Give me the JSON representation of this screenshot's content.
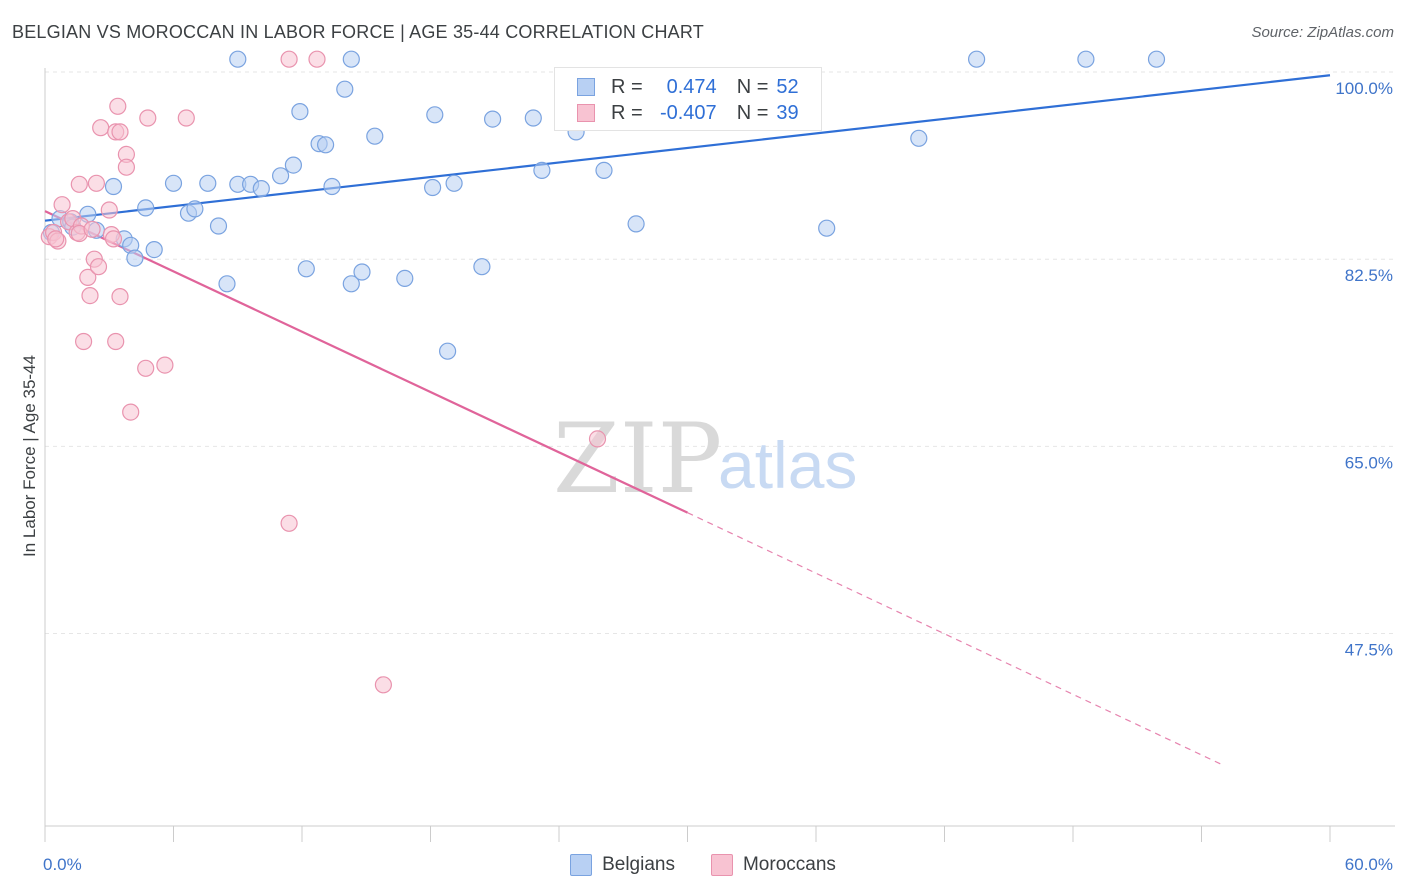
{
  "title": "BELGIAN VS MOROCCAN IN LABOR FORCE | AGE 35-44 CORRELATION CHART",
  "source": "Source: ZipAtlas.com",
  "watermark": {
    "zip": "ZIP",
    "atlas": "atlas"
  },
  "legend": {
    "r_label": "R =",
    "n_label": "N =",
    "rows": [
      {
        "series": "Belgians",
        "r": "0.474",
        "n": "52",
        "fill": "#b8d0f3",
        "stroke": "#7aa3e0"
      },
      {
        "series": "Moroccans",
        "r": "-0.407",
        "n": "39",
        "fill": "#f8c3d2",
        "stroke": "#e993ae"
      }
    ]
  },
  "chart_data": {
    "type": "scatter",
    "title": "BELGIAN VS MOROCCAN IN LABOR FORCE | AGE 35-44 CORRELATION CHART",
    "xlabel": "",
    "ylabel": "In Labor Force | Age 35-44",
    "xlim": [
      0,
      60
    ],
    "ylim": [
      29.5,
      101.5
    ],
    "x_ticks": [
      "0.0%",
      "60.0%"
    ],
    "y_ticks": [
      {
        "value": 100.0,
        "label": "100.0%"
      },
      {
        "value": 82.5,
        "label": "82.5%"
      },
      {
        "value": 65.0,
        "label": "65.0%"
      },
      {
        "value": 47.5,
        "label": "47.5%"
      }
    ],
    "grid": true,
    "legend_position": "top-center",
    "series": [
      {
        "name": "Belgians",
        "color": "#7aa3e0",
        "fill": "#b8d0f3",
        "trend": {
          "x": [
            0,
            60
          ],
          "y": [
            86.1,
            99.7
          ],
          "style": "solid",
          "color": "#2f6fd6"
        },
        "points": [
          [
            0.7,
            86.3
          ],
          [
            1.2,
            86.0
          ],
          [
            1.3,
            85.5
          ],
          [
            2.0,
            86.7
          ],
          [
            2.4,
            85.2
          ],
          [
            3.2,
            89.3
          ],
          [
            3.7,
            84.4
          ],
          [
            4.0,
            83.8
          ],
          [
            4.2,
            82.6
          ],
          [
            4.7,
            87.3
          ],
          [
            5.1,
            83.4
          ],
          [
            6.0,
            89.6
          ],
          [
            6.7,
            86.8
          ],
          [
            7.0,
            87.2
          ],
          [
            7.6,
            89.6
          ],
          [
            8.1,
            85.6
          ],
          [
            8.5,
            80.2
          ],
          [
            9.0,
            89.5
          ],
          [
            9.6,
            89.5
          ],
          [
            10.1,
            89.1
          ],
          [
            9.0,
            101.2
          ],
          [
            11.0,
            90.3
          ],
          [
            11.6,
            91.3
          ],
          [
            11.9,
            96.3
          ],
          [
            12.2,
            81.6
          ],
          [
            12.8,
            93.3
          ],
          [
            13.1,
            93.2
          ],
          [
            13.4,
            89.3
          ],
          [
            14.0,
            98.4
          ],
          [
            14.3,
            80.2
          ],
          [
            14.8,
            81.3
          ],
          [
            15.4,
            94.0
          ],
          [
            14.3,
            101.2
          ],
          [
            16.8,
            80.7
          ],
          [
            18.1,
            89.2
          ],
          [
            18.2,
            96.0
          ],
          [
            18.8,
            73.9
          ],
          [
            19.1,
            89.6
          ],
          [
            20.4,
            81.8
          ],
          [
            20.9,
            95.6
          ],
          [
            22.8,
            95.7
          ],
          [
            23.2,
            90.8
          ],
          [
            24.8,
            94.4
          ],
          [
            26.1,
            90.8
          ],
          [
            27.6,
            85.8
          ],
          [
            32.0,
            95.9
          ],
          [
            36.5,
            85.4
          ],
          [
            40.8,
            93.8
          ],
          [
            43.5,
            101.2
          ],
          [
            48.6,
            101.2
          ],
          [
            51.9,
            101.2
          ],
          [
            0.3,
            85.0
          ]
        ]
      },
      {
        "name": "Moroccans",
        "color": "#e993ae",
        "fill": "#f8c3d2",
        "trend": {
          "x": [
            0,
            30
          ],
          "y": [
            87.0,
            58.8
          ],
          "style": "solid",
          "color": "#e0649a",
          "dashed_extension": {
            "x": [
              30,
              55
            ],
            "y": [
              58.8,
              35.2
            ]
          }
        },
        "points": [
          [
            0.2,
            84.6
          ],
          [
            0.4,
            85.0
          ],
          [
            0.6,
            84.2
          ],
          [
            0.8,
            87.6
          ],
          [
            1.1,
            86.0
          ],
          [
            1.3,
            86.3
          ],
          [
            1.5,
            85.0
          ],
          [
            1.7,
            85.6
          ],
          [
            1.6,
            84.9
          ],
          [
            2.2,
            85.3
          ],
          [
            2.0,
            80.8
          ],
          [
            2.1,
            79.1
          ],
          [
            2.3,
            82.5
          ],
          [
            2.5,
            81.8
          ],
          [
            2.4,
            89.6
          ],
          [
            1.6,
            89.5
          ],
          [
            2.6,
            94.8
          ],
          [
            3.0,
            87.1
          ],
          [
            3.1,
            84.8
          ],
          [
            3.2,
            84.4
          ],
          [
            3.5,
            79.0
          ],
          [
            3.3,
            74.8
          ],
          [
            1.8,
            74.8
          ],
          [
            3.4,
            96.8
          ],
          [
            3.3,
            94.4
          ],
          [
            3.5,
            94.4
          ],
          [
            3.8,
            92.3
          ],
          [
            3.8,
            91.1
          ],
          [
            4.8,
            95.7
          ],
          [
            4.7,
            72.3
          ],
          [
            5.6,
            72.6
          ],
          [
            4.0,
            68.2
          ],
          [
            6.6,
            95.7
          ],
          [
            11.4,
            101.2
          ],
          [
            12.7,
            101.2
          ],
          [
            25.8,
            65.7
          ],
          [
            11.4,
            57.8
          ],
          [
            15.8,
            42.7
          ],
          [
            0.5,
            84.4
          ]
        ]
      }
    ]
  }
}
